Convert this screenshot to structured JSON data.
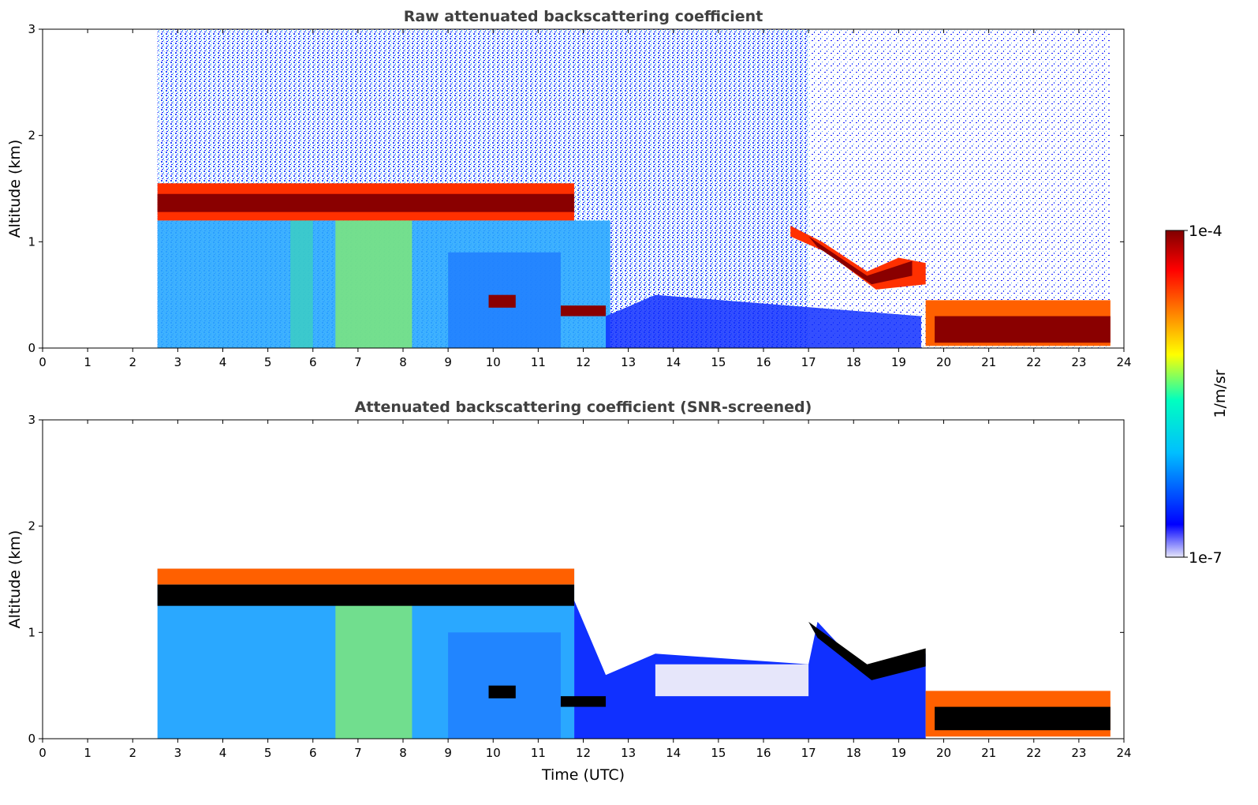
{
  "chart_data": [
    {
      "type": "heatmap",
      "title": "Raw attenuated backscattering coefficient",
      "xlabel": "",
      "ylabel": "Altitude (km)",
      "xlim": [
        0,
        24
      ],
      "ylim": [
        0,
        3
      ],
      "xticks": [
        "0",
        "1",
        "2",
        "3",
        "4",
        "5",
        "6",
        "7",
        "8",
        "9",
        "10",
        "11",
        "12",
        "13",
        "14",
        "15",
        "16",
        "17",
        "18",
        "19",
        "20",
        "21",
        "22",
        "23",
        "24"
      ],
      "yticks": [
        "0",
        "1",
        "2",
        "3"
      ],
      "data_start_time": 2.55,
      "data_end_time": 23.7,
      "features": [
        {
          "name": "stratocumulus cloud layer",
          "t_start": 2.55,
          "t_end": 11.8,
          "altitude_base": 1.2,
          "altitude_top": 1.5,
          "level": "high"
        },
        {
          "name": "descending cloud layer",
          "t_start": 16.6,
          "t_end": 19.6,
          "altitude_start": 1.1,
          "altitude_min": 0.6,
          "altitude_end": 0.8,
          "level": "high"
        },
        {
          "name": "low cloud",
          "t_start": 19.6,
          "t_end": 23.7,
          "altitude_base": 0.05,
          "altitude_top": 0.4,
          "level": "high"
        },
        {
          "name": "boundary-layer aerosol",
          "t_start": 2.55,
          "t_end": 12.5,
          "altitude_base": 0.0,
          "altitude_top": 1.2,
          "level": "medium"
        },
        {
          "name": "clear-air noise",
          "t_start": 2.55,
          "t_end": 23.7,
          "altitude_base": 0.0,
          "altitude_top": 3.0,
          "level": "low"
        }
      ]
    },
    {
      "type": "heatmap",
      "title": "Attenuated backscattering coefficient (SNR-screened)",
      "xlabel": "Time (UTC)",
      "ylabel": "Altitude (km)",
      "xlim": [
        0,
        24
      ],
      "ylim": [
        0,
        3
      ],
      "xticks": [
        "0",
        "1",
        "2",
        "3",
        "4",
        "5",
        "6",
        "7",
        "8",
        "9",
        "10",
        "11",
        "12",
        "13",
        "14",
        "15",
        "16",
        "17",
        "18",
        "19",
        "20",
        "21",
        "22",
        "23",
        "24"
      ],
      "yticks": [
        "0",
        "1",
        "2",
        "3"
      ],
      "data_start_time": 2.55,
      "data_end_time": 23.7,
      "features": [
        {
          "name": "saturated cloud layer",
          "t_start": 2.55,
          "t_end": 11.8,
          "altitude_base": 1.25,
          "altitude_top": 1.45,
          "level": "saturated"
        },
        {
          "name": "descending cloud layer",
          "t_start": 17.0,
          "t_end": 19.6,
          "altitude_start": 1.1,
          "altitude_min": 0.6,
          "altitude_end": 0.8,
          "level": "saturated"
        },
        {
          "name": "low cloud",
          "t_start": 19.6,
          "t_end": 23.7,
          "altitude_base": 0.05,
          "altitude_top": 0.35,
          "level": "saturated"
        },
        {
          "name": "screened noise removed above",
          "t_start": 2.55,
          "t_end": 23.7,
          "altitude_base": 1.6,
          "altitude_top": 3.0,
          "level": "none"
        }
      ]
    }
  ],
  "colorbar": {
    "label": "1/m/sr",
    "max_label": "1e-4",
    "min_label": "1e-7",
    "colormap": [
      "#e6e6fa",
      "#0000ff",
      "#00bfff",
      "#00ffc0",
      "#ffff00",
      "#ff8000",
      "#ff0000",
      "#800000"
    ]
  },
  "colors": {
    "saturated": "#000000",
    "title_gray": "#404040"
  }
}
